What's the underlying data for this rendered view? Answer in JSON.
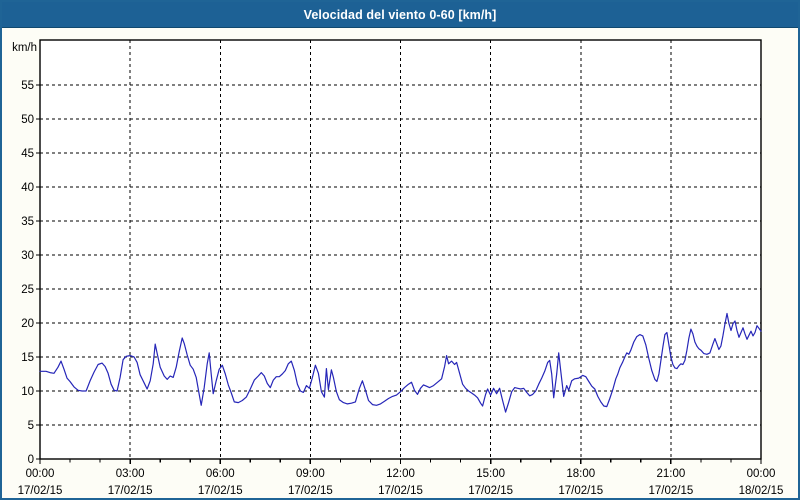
{
  "window": {
    "title": "Velocidad del viento 0-60 [km/h]"
  },
  "colors": {
    "titlebar_bg": "#1d6195",
    "frame_border": "#1f6496",
    "content_bg": "#fdfdf6",
    "plot_bg": "#ffffff",
    "grid": "#000000",
    "axis_text": "#000000",
    "title_text": "#ffffff",
    "series_line": "#2626b8"
  },
  "chart_data": {
    "type": "line",
    "title": "Velocidad del viento 0-60 [km/h]",
    "ylabel": "km/h",
    "xlabel": "",
    "ylim": [
      0,
      60
    ],
    "xlim_minutes": [
      0,
      1440
    ],
    "grid": true,
    "grid_style": "dashed",
    "legend": "none",
    "y_ticks": [
      0,
      5,
      10,
      15,
      20,
      25,
      30,
      35,
      40,
      45,
      50,
      55
    ],
    "x_minor_tick_interval_minutes": 60,
    "x_major_ticks": [
      {
        "minutes": 0,
        "time": "00:00",
        "date": "17/02/15"
      },
      {
        "minutes": 180,
        "time": "03:00",
        "date": "17/02/15"
      },
      {
        "minutes": 360,
        "time": "06:00",
        "date": "17/02/15"
      },
      {
        "minutes": 540,
        "time": "09:00",
        "date": "17/02/15"
      },
      {
        "minutes": 720,
        "time": "12:00",
        "date": "17/02/15"
      },
      {
        "minutes": 900,
        "time": "15:00",
        "date": "17/02/15"
      },
      {
        "minutes": 1080,
        "time": "18:00",
        "date": "17/02/15"
      },
      {
        "minutes": 1260,
        "time": "21:00",
        "date": "17/02/15"
      },
      {
        "minutes": 1440,
        "time": "00:00",
        "date": "18/02/15"
      }
    ],
    "series": [
      {
        "name": "Velocidad del viento",
        "color": "#2626b8",
        "points": [
          [
            0,
            12.9
          ],
          [
            12,
            12.9
          ],
          [
            20,
            12.7
          ],
          [
            28,
            12.6
          ],
          [
            36,
            13.5
          ],
          [
            42,
            14.4
          ],
          [
            48,
            13.2
          ],
          [
            54,
            11.9
          ],
          [
            60,
            11.4
          ],
          [
            68,
            10.6
          ],
          [
            76,
            10.1
          ],
          [
            84,
            10.0
          ],
          [
            92,
            10.0
          ],
          [
            100,
            11.5
          ],
          [
            108,
            12.8
          ],
          [
            116,
            13.9
          ],
          [
            124,
            14.1
          ],
          [
            130,
            13.6
          ],
          [
            136,
            12.6
          ],
          [
            142,
            11.0
          ],
          [
            148,
            10.1
          ],
          [
            154,
            10.0
          ],
          [
            160,
            12.0
          ],
          [
            166,
            14.6
          ],
          [
            172,
            15.1
          ],
          [
            180,
            15.2
          ],
          [
            188,
            15.0
          ],
          [
            194,
            14.2
          ],
          [
            200,
            12.4
          ],
          [
            208,
            11.2
          ],
          [
            214,
            10.3
          ],
          [
            220,
            11.5
          ],
          [
            226,
            14.0
          ],
          [
            230,
            16.9
          ],
          [
            234,
            15.5
          ],
          [
            240,
            13.5
          ],
          [
            248,
            12.2
          ],
          [
            254,
            11.7
          ],
          [
            260,
            12.2
          ],
          [
            266,
            12.0
          ],
          [
            272,
            13.5
          ],
          [
            278,
            15.8
          ],
          [
            284,
            17.8
          ],
          [
            288,
            17.0
          ],
          [
            294,
            15.3
          ],
          [
            300,
            13.8
          ],
          [
            306,
            13.2
          ],
          [
            312,
            12.0
          ],
          [
            318,
            9.5
          ],
          [
            322,
            7.9
          ],
          [
            328,
            10.5
          ],
          [
            334,
            14.0
          ],
          [
            338,
            15.6
          ],
          [
            342,
            12.5
          ],
          [
            346,
            9.6
          ],
          [
            352,
            11.5
          ],
          [
            358,
            13.2
          ],
          [
            364,
            13.8
          ],
          [
            370,
            12.5
          ],
          [
            376,
            10.9
          ],
          [
            382,
            9.7
          ],
          [
            388,
            8.4
          ],
          [
            396,
            8.3
          ],
          [
            404,
            8.6
          ],
          [
            412,
            9.1
          ],
          [
            420,
            10.3
          ],
          [
            428,
            11.6
          ],
          [
            436,
            12.2
          ],
          [
            442,
            12.7
          ],
          [
            448,
            12.2
          ],
          [
            454,
            11.1
          ],
          [
            460,
            10.5
          ],
          [
            466,
            11.6
          ],
          [
            472,
            12.1
          ],
          [
            478,
            12.1
          ],
          [
            484,
            12.5
          ],
          [
            490,
            13.0
          ],
          [
            496,
            14.0
          ],
          [
            502,
            14.4
          ],
          [
            508,
            13.0
          ],
          [
            514,
            11.0
          ],
          [
            520,
            10.0
          ],
          [
            526,
            9.8
          ],
          [
            532,
            10.8
          ],
          [
            538,
            10.4
          ],
          [
            544,
            12.0
          ],
          [
            550,
            13.8
          ],
          [
            556,
            12.6
          ],
          [
            562,
            9.9
          ],
          [
            568,
            9.1
          ],
          [
            572,
            13.3
          ],
          [
            576,
            10.2
          ],
          [
            582,
            13.1
          ],
          [
            586,
            12.0
          ],
          [
            592,
            9.9
          ],
          [
            598,
            8.7
          ],
          [
            606,
            8.3
          ],
          [
            614,
            8.1
          ],
          [
            622,
            8.2
          ],
          [
            630,
            8.4
          ],
          [
            638,
            10.4
          ],
          [
            644,
            11.5
          ],
          [
            650,
            10.1
          ],
          [
            656,
            8.6
          ],
          [
            664,
            8.0
          ],
          [
            672,
            7.9
          ],
          [
            680,
            8.1
          ],
          [
            688,
            8.5
          ],
          [
            696,
            8.9
          ],
          [
            704,
            9.2
          ],
          [
            712,
            9.4
          ],
          [
            720,
            9.9
          ],
          [
            728,
            10.5
          ],
          [
            736,
            11.0
          ],
          [
            742,
            11.3
          ],
          [
            748,
            10.1
          ],
          [
            754,
            9.5
          ],
          [
            760,
            10.4
          ],
          [
            766,
            10.9
          ],
          [
            772,
            10.7
          ],
          [
            778,
            10.5
          ],
          [
            786,
            10.8
          ],
          [
            794,
            11.3
          ],
          [
            802,
            11.8
          ],
          [
            808,
            13.6
          ],
          [
            812,
            15.2
          ],
          [
            816,
            14.0
          ],
          [
            822,
            14.4
          ],
          [
            828,
            13.9
          ],
          [
            832,
            14.2
          ],
          [
            838,
            12.6
          ],
          [
            844,
            11.0
          ],
          [
            850,
            10.4
          ],
          [
            856,
            10.0
          ],
          [
            862,
            9.7
          ],
          [
            868,
            9.4
          ],
          [
            874,
            9.0
          ],
          [
            880,
            8.2
          ],
          [
            884,
            7.8
          ],
          [
            890,
            9.5
          ],
          [
            894,
            10.3
          ],
          [
            900,
            9.4
          ],
          [
            906,
            10.4
          ],
          [
            912,
            9.6
          ],
          [
            918,
            10.4
          ],
          [
            924,
            8.6
          ],
          [
            930,
            6.9
          ],
          [
            936,
            8.3
          ],
          [
            942,
            9.9
          ],
          [
            948,
            10.5
          ],
          [
            954,
            10.4
          ],
          [
            960,
            10.3
          ],
          [
            966,
            10.4
          ],
          [
            972,
            9.8
          ],
          [
            978,
            9.3
          ],
          [
            984,
            9.5
          ],
          [
            990,
            10.0
          ],
          [
            996,
            11.0
          ],
          [
            1002,
            11.9
          ],
          [
            1008,
            12.9
          ],
          [
            1014,
            14.2
          ],
          [
            1018,
            14.5
          ],
          [
            1022,
            12.5
          ],
          [
            1026,
            9.0
          ],
          [
            1032,
            12.5
          ],
          [
            1036,
            15.6
          ],
          [
            1040,
            13.0
          ],
          [
            1046,
            9.2
          ],
          [
            1052,
            10.8
          ],
          [
            1056,
            10.1
          ],
          [
            1062,
            11.5
          ],
          [
            1068,
            11.8
          ],
          [
            1076,
            11.9
          ],
          [
            1084,
            12.3
          ],
          [
            1090,
            12.1
          ],
          [
            1096,
            11.4
          ],
          [
            1102,
            10.7
          ],
          [
            1108,
            10.3
          ],
          [
            1114,
            9.2
          ],
          [
            1120,
            8.4
          ],
          [
            1126,
            7.8
          ],
          [
            1132,
            7.7
          ],
          [
            1138,
            8.9
          ],
          [
            1144,
            10.2
          ],
          [
            1150,
            11.8
          ],
          [
            1154,
            12.5
          ],
          [
            1158,
            13.4
          ],
          [
            1164,
            14.3
          ],
          [
            1168,
            15.0
          ],
          [
            1172,
            15.6
          ],
          [
            1176,
            15.4
          ],
          [
            1180,
            16.0
          ],
          [
            1186,
            17.2
          ],
          [
            1192,
            18.0
          ],
          [
            1198,
            18.3
          ],
          [
            1204,
            18.1
          ],
          [
            1210,
            16.8
          ],
          [
            1216,
            14.8
          ],
          [
            1222,
            13.0
          ],
          [
            1228,
            11.7
          ],
          [
            1232,
            11.4
          ],
          [
            1236,
            12.5
          ],
          [
            1240,
            14.5
          ],
          [
            1244,
            16.5
          ],
          [
            1248,
            18.3
          ],
          [
            1252,
            18.6
          ],
          [
            1256,
            16.8
          ],
          [
            1260,
            15.0
          ],
          [
            1264,
            13.9
          ],
          [
            1268,
            13.4
          ],
          [
            1272,
            13.3
          ],
          [
            1276,
            13.7
          ],
          [
            1280,
            14.0
          ],
          [
            1284,
            13.9
          ],
          [
            1288,
            14.5
          ],
          [
            1292,
            16.0
          ],
          [
            1296,
            17.8
          ],
          [
            1300,
            19.1
          ],
          [
            1304,
            18.4
          ],
          [
            1308,
            17.2
          ],
          [
            1312,
            16.6
          ],
          [
            1316,
            16.2
          ],
          [
            1320,
            16.0
          ],
          [
            1326,
            15.5
          ],
          [
            1332,
            15.4
          ],
          [
            1338,
            15.6
          ],
          [
            1344,
            16.9
          ],
          [
            1348,
            17.7
          ],
          [
            1352,
            16.9
          ],
          [
            1356,
            16.1
          ],
          [
            1360,
            16.6
          ],
          [
            1364,
            18.1
          ],
          [
            1368,
            19.9
          ],
          [
            1372,
            21.4
          ],
          [
            1376,
            19.9
          ],
          [
            1380,
            18.9
          ],
          [
            1384,
            19.9
          ],
          [
            1388,
            20.3
          ],
          [
            1392,
            18.9
          ],
          [
            1396,
            17.9
          ],
          [
            1400,
            18.6
          ],
          [
            1404,
            19.3
          ],
          [
            1408,
            18.4
          ],
          [
            1412,
            17.6
          ],
          [
            1416,
            18.2
          ],
          [
            1420,
            18.8
          ],
          [
            1424,
            18.1
          ],
          [
            1428,
            18.6
          ],
          [
            1432,
            19.6
          ],
          [
            1436,
            19.2
          ],
          [
            1440,
            18.8
          ]
        ]
      }
    ]
  }
}
